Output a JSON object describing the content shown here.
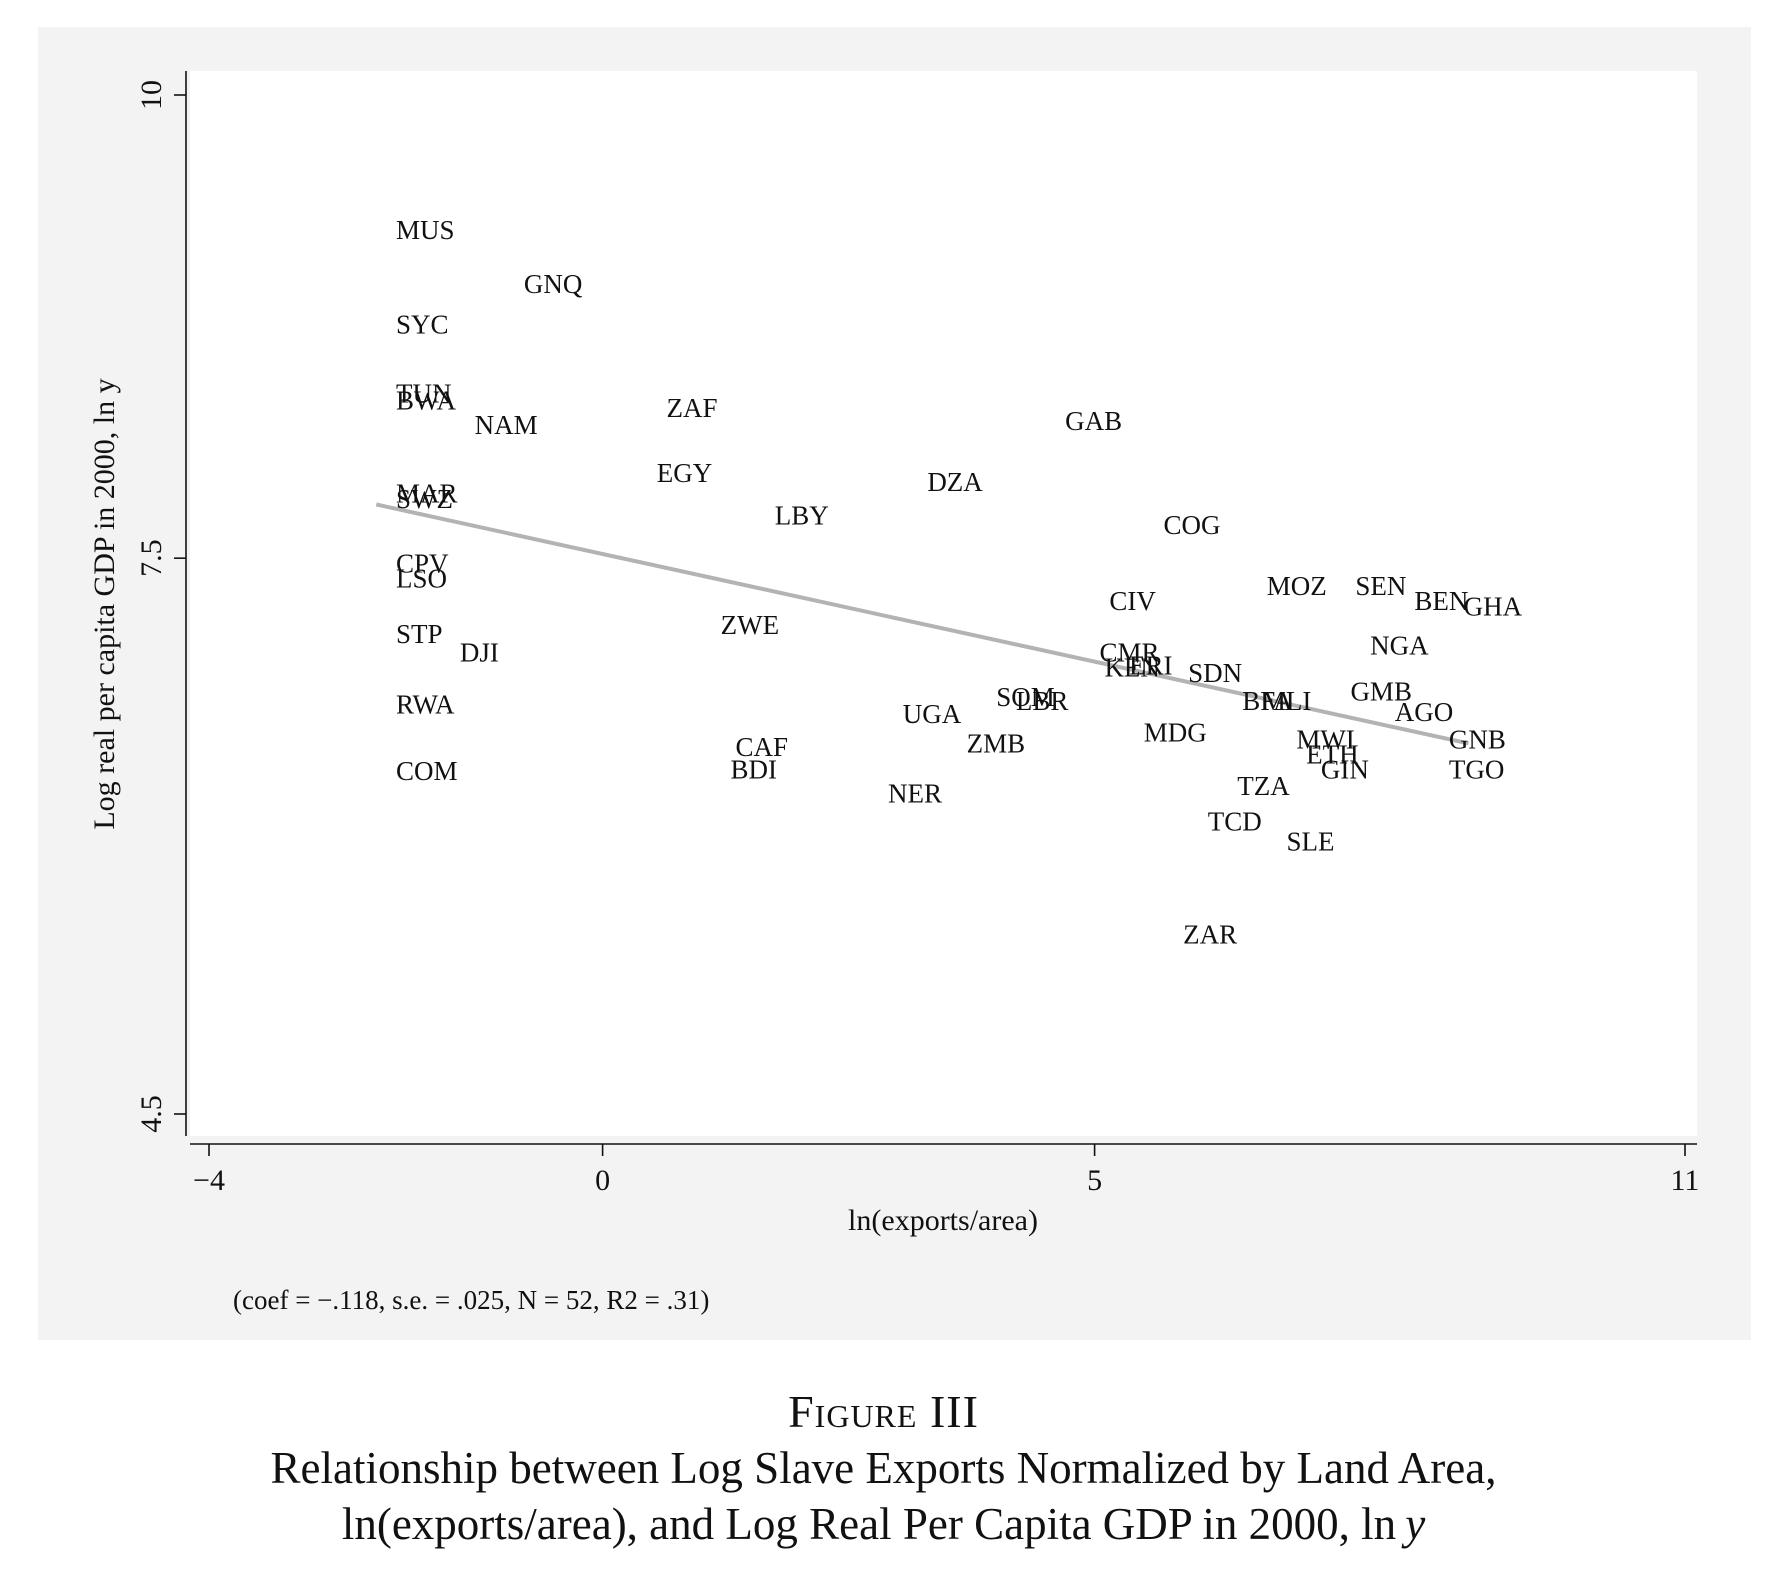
{
  "chart_data": {
    "type": "scatter",
    "xlabel": "ln(exports/area)",
    "ylabel": "Log real per capita GDP in 2000, ln y",
    "xlim": [
      -4.2,
      11.2
    ],
    "ylim": [
      4.4,
      10.1
    ],
    "xticks": [
      -4,
      0,
      5,
      11
    ],
    "xtick_labels": [
      "−4",
      "0",
      "5",
      "11"
    ],
    "yticks": [
      4.5,
      7.5,
      10
    ],
    "ytick_labels": [
      "4.5",
      "7.5",
      "10"
    ],
    "grid": false,
    "points": [
      {
        "label": "MUS",
        "x": -2.1,
        "y": 9.27
      },
      {
        "label": "GNQ",
        "x": -0.8,
        "y": 8.98
      },
      {
        "label": "SYC",
        "x": -2.1,
        "y": 8.76
      },
      {
        "label": "TUN",
        "x": -2.1,
        "y": 8.39
      },
      {
        "label": "BWA",
        "x": -2.1,
        "y": 8.35
      },
      {
        "label": "NAM",
        "x": -1.3,
        "y": 8.22
      },
      {
        "label": "ZAF",
        "x": 0.65,
        "y": 8.31
      },
      {
        "label": "GAB",
        "x": 4.7,
        "y": 8.24
      },
      {
        "label": "EGY",
        "x": 0.55,
        "y": 7.96
      },
      {
        "label": "DZA",
        "x": 3.3,
        "y": 7.91
      },
      {
        "label": "MAR",
        "x": -2.1,
        "y": 7.85
      },
      {
        "label": "SWZ",
        "x": -2.1,
        "y": 7.82
      },
      {
        "label": "LBY",
        "x": 1.75,
        "y": 7.73
      },
      {
        "label": "COG",
        "x": 5.7,
        "y": 7.68
      },
      {
        "label": "CPV",
        "x": -2.1,
        "y": 7.47
      },
      {
        "label": "LSO",
        "x": -2.1,
        "y": 7.39
      },
      {
        "label": "MOZ",
        "x": 6.75,
        "y": 7.35
      },
      {
        "label": "SEN",
        "x": 7.65,
        "y": 7.35
      },
      {
        "label": "BEN",
        "x": 8.25,
        "y": 7.27
      },
      {
        "label": "GHA",
        "x": 8.75,
        "y": 7.24
      },
      {
        "label": "CIV",
        "x": 5.15,
        "y": 7.27
      },
      {
        "label": "ZWE",
        "x": 1.2,
        "y": 7.14
      },
      {
        "label": "STP",
        "x": -2.1,
        "y": 7.09
      },
      {
        "label": "NGA",
        "x": 7.8,
        "y": 7.03
      },
      {
        "label": "DJI",
        "x": -1.45,
        "y": 6.99
      },
      {
        "label": "CMR",
        "x": 5.05,
        "y": 6.99
      },
      {
        "label": "KEN",
        "x": 5.1,
        "y": 6.91
      },
      {
        "label": "ERI",
        "x": 5.35,
        "y": 6.92
      },
      {
        "label": "SDN",
        "x": 5.95,
        "y": 6.88
      },
      {
        "label": "GMB",
        "x": 7.6,
        "y": 6.78
      },
      {
        "label": "SOM",
        "x": 4.0,
        "y": 6.75
      },
      {
        "label": "LBR",
        "x": 4.2,
        "y": 6.73
      },
      {
        "label": "RWA",
        "x": -2.1,
        "y": 6.71
      },
      {
        "label": "BFA",
        "x": 6.5,
        "y": 6.73
      },
      {
        "label": "MLI",
        "x": 6.7,
        "y": 6.73
      },
      {
        "label": "UGA",
        "x": 3.05,
        "y": 6.66
      },
      {
        "label": "AGO",
        "x": 8.05,
        "y": 6.67
      },
      {
        "label": "MDG",
        "x": 5.5,
        "y": 6.56
      },
      {
        "label": "ZMB",
        "x": 3.7,
        "y": 6.5
      },
      {
        "label": "CAF",
        "x": 1.35,
        "y": 6.48
      },
      {
        "label": "MWI",
        "x": 7.05,
        "y": 6.52
      },
      {
        "label": "GNB",
        "x": 8.6,
        "y": 6.52
      },
      {
        "label": "ETH",
        "x": 7.15,
        "y": 6.44
      },
      {
        "label": "COM",
        "x": -2.1,
        "y": 6.35
      },
      {
        "label": "BDI",
        "x": 1.3,
        "y": 6.36
      },
      {
        "label": "GIN",
        "x": 7.3,
        "y": 6.36
      },
      {
        "label": "TGO",
        "x": 8.6,
        "y": 6.36
      },
      {
        "label": "NER",
        "x": 2.9,
        "y": 6.23
      },
      {
        "label": "TZA",
        "x": 6.45,
        "y": 6.27
      },
      {
        "label": "TCD",
        "x": 6.15,
        "y": 6.08
      },
      {
        "label": "SLE",
        "x": 6.95,
        "y": 5.97
      },
      {
        "label": "ZAR",
        "x": 5.9,
        "y": 5.47
      }
    ],
    "fit_line": {
      "x": [
        -2.3,
        8.8
      ],
      "y": [
        7.79,
        6.5
      ],
      "color": "#b3b3b3"
    },
    "note": "(coef = −.118, s.e. = .025, N = 52, R2 = .31)"
  },
  "caption": {
    "figure_number": "Figure III",
    "line1": "Relationship between Log Slave Exports Normalized by Land Area,",
    "line2_main": "ln(exports/area), and Log Real Per Capita GDP in 2000, ln ",
    "line2_italic": "y"
  }
}
